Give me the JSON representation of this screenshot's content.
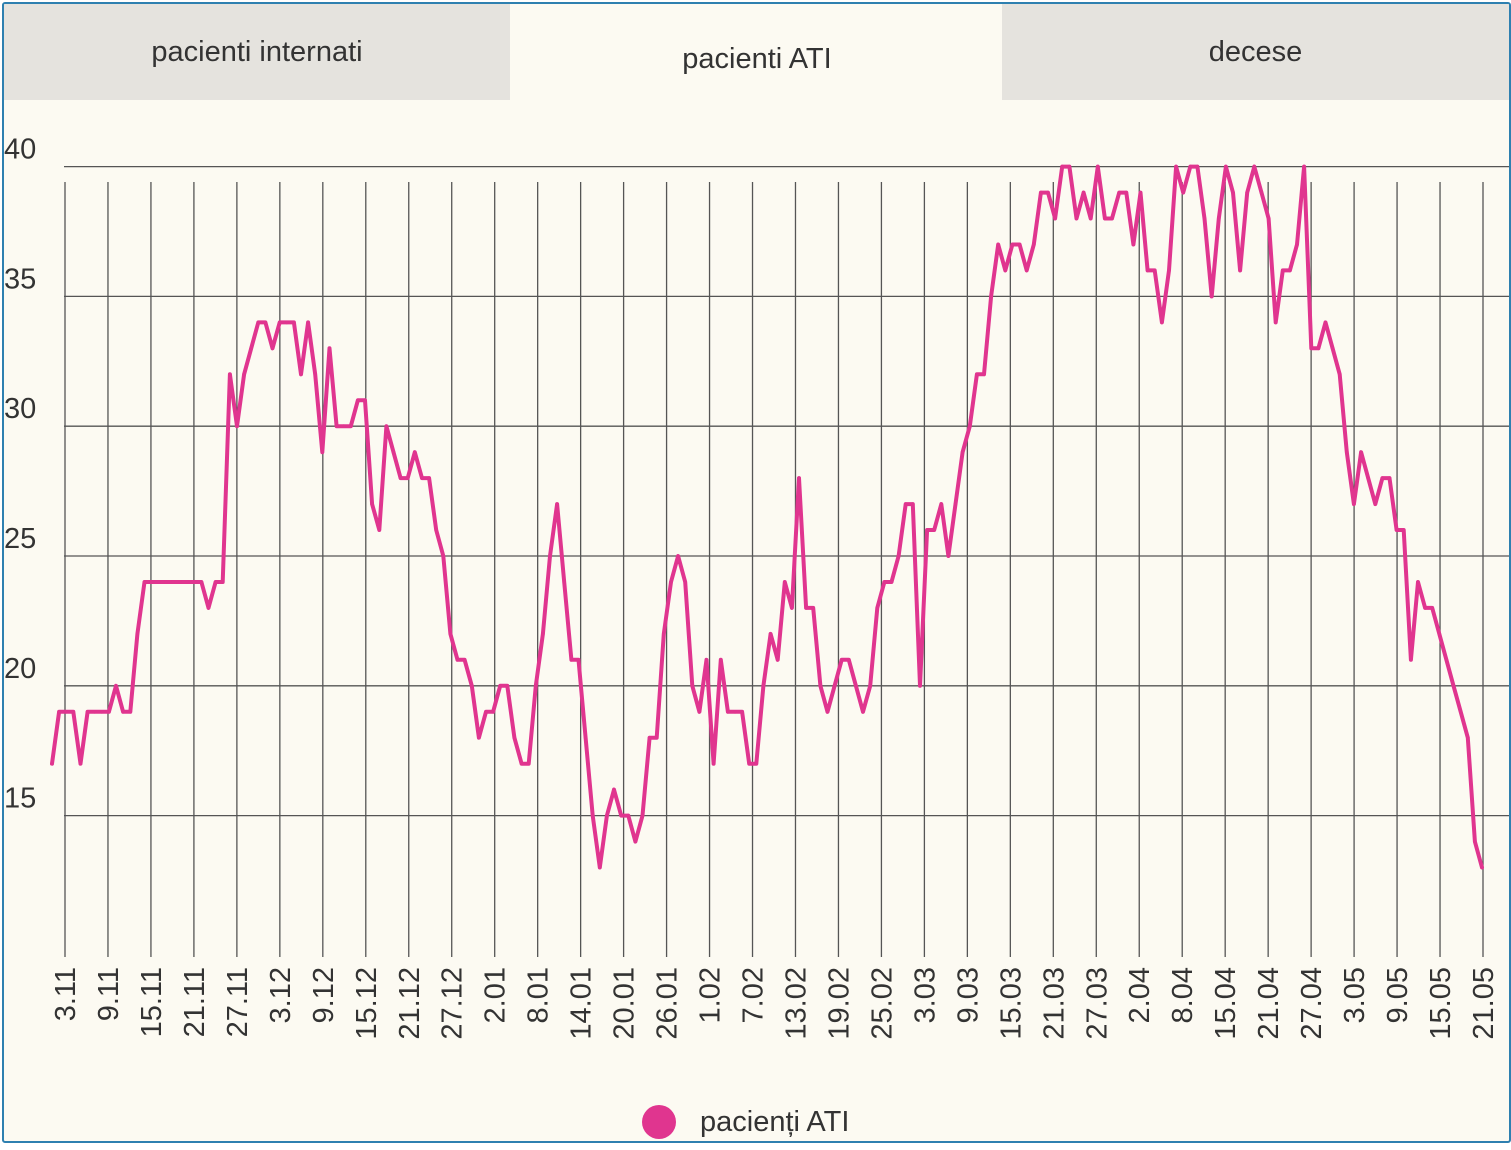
{
  "tabs": [
    {
      "label": "pacienti internati",
      "active": false
    },
    {
      "label": "pacienti ATI",
      "active": true
    },
    {
      "label": "decese",
      "active": false
    }
  ],
  "colors": {
    "line": "#e0358f",
    "grid": "#555555",
    "background": "#fcfaf2",
    "border": "#2e80b0",
    "tab_inactive": "#e5e3de"
  },
  "chart_data": {
    "type": "line",
    "title": "",
    "xlabel": "",
    "ylabel": "",
    "ylim": [
      12.2,
      42
    ],
    "yticks": [
      15,
      20,
      25,
      30,
      35,
      40
    ],
    "grid": true,
    "legend_position": "bottom",
    "x_tick_labels": [
      "3.11",
      "9.11",
      "15.11",
      "21.11",
      "27.11",
      "3.12",
      "9.12",
      "15.12",
      "21.12",
      "27.12",
      "2.01",
      "8.01",
      "14.01",
      "20.01",
      "26.01",
      "1.02",
      "7.02",
      "13.02",
      "19.02",
      "25.02",
      "3.03",
      "9.03",
      "15.03",
      "21.03",
      "27.03",
      "2.04",
      "8.04",
      "15.04",
      "21.04",
      "27.04",
      "3.05",
      "9.05",
      "15.05",
      "21.05"
    ],
    "series": [
      {
        "name": "pacienți ATI",
        "values": [
          17,
          19,
          19,
          19,
          17,
          19,
          19,
          19,
          19,
          20,
          19,
          19,
          22,
          24,
          24,
          24,
          24,
          24,
          24,
          24,
          24,
          24,
          23,
          24,
          24,
          32,
          30,
          32,
          33,
          34,
          34,
          33,
          34,
          34,
          34,
          32,
          34,
          32,
          29,
          33,
          30,
          30,
          30,
          31,
          31,
          27,
          26,
          30,
          29,
          28,
          28,
          29,
          28,
          28,
          26,
          25,
          22,
          21,
          21,
          20,
          18,
          19,
          19,
          20,
          20,
          18,
          17,
          17,
          20,
          22,
          25,
          27,
          24,
          21,
          21,
          18,
          15,
          13,
          15,
          16,
          15,
          15,
          14,
          15,
          18,
          18,
          22,
          24,
          25,
          24,
          20,
          19,
          21,
          17,
          21,
          19,
          19,
          19,
          17,
          17,
          20,
          22,
          21,
          24,
          23,
          28,
          23,
          23,
          20,
          19,
          20,
          21,
          21,
          20,
          19,
          20,
          23,
          24,
          24,
          25,
          27,
          27,
          20,
          26,
          26,
          27,
          25,
          27,
          29,
          30,
          32,
          32,
          35,
          37,
          36,
          37,
          37,
          36,
          37,
          39,
          39,
          38,
          40,
          40,
          38,
          39,
          38,
          40,
          38,
          38,
          39,
          39,
          37,
          39,
          36,
          36,
          34,
          36,
          40,
          39,
          40,
          40,
          38,
          35,
          38,
          40,
          39,
          36,
          39,
          40,
          39,
          38,
          34,
          36,
          36,
          37,
          40,
          33,
          33,
          34,
          33,
          32,
          29,
          27,
          29,
          28,
          27,
          28,
          28,
          26,
          26,
          21,
          24,
          23,
          23,
          22,
          21,
          20,
          19,
          18,
          14,
          13
        ]
      }
    ]
  }
}
